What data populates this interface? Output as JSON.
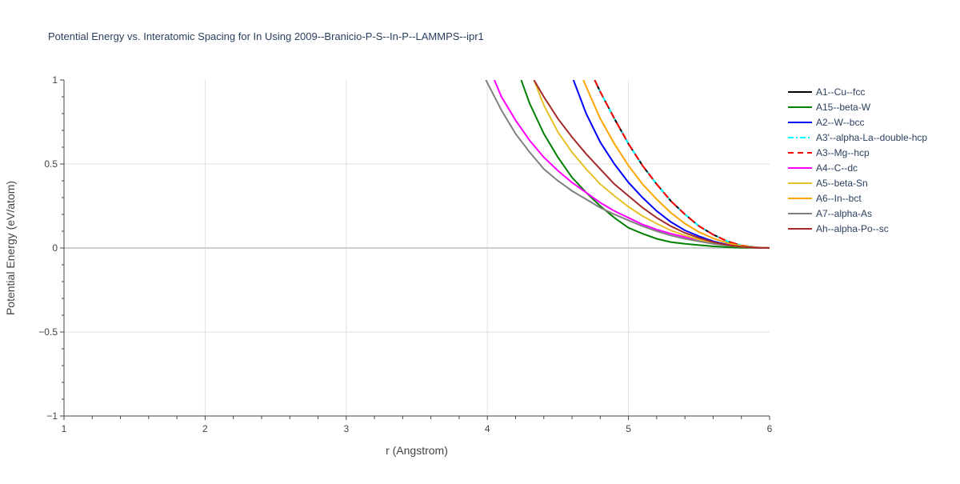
{
  "chart_data": {
    "type": "line",
    "title": "Potential Energy vs. Interatomic Spacing for In Using 2009--Branicio-P-S--In-P--LAMMPS--ipr1",
    "xlabel": "r (Angstrom)",
    "ylabel": "Potential Energy (eV/atom)",
    "xlim": [
      1,
      6
    ],
    "ylim": [
      -1,
      1
    ],
    "x_ticks": [
      "1",
      "2",
      "3",
      "4",
      "5",
      "6"
    ],
    "y_ticks": [
      "1",
      "0.5",
      "0",
      "−0.5",
      "−1"
    ],
    "grid": true,
    "legend_position": "right",
    "series": [
      {
        "name": "A1--Cu--fcc",
        "color": "#000000",
        "dash": "solid",
        "x": [
          4.76,
          4.8,
          4.9,
          5.0,
          5.1,
          5.2,
          5.3,
          5.4,
          5.5,
          5.6,
          5.7,
          5.8,
          5.9,
          6.0
        ],
        "y": [
          1.0,
          0.93,
          0.77,
          0.62,
          0.49,
          0.38,
          0.28,
          0.2,
          0.13,
          0.08,
          0.04,
          0.015,
          0.004,
          0.0
        ]
      },
      {
        "name": "A15--beta-W",
        "color": "#008000",
        "dash": "solid",
        "x": [
          4.24,
          4.3,
          4.4,
          4.5,
          4.6,
          4.7,
          4.8,
          4.9,
          5.0,
          5.1,
          5.2,
          5.3,
          5.4,
          5.5,
          5.6,
          5.7,
          5.8,
          5.9,
          6.0
        ],
        "y": [
          1.0,
          0.86,
          0.68,
          0.54,
          0.42,
          0.33,
          0.25,
          0.18,
          0.12,
          0.085,
          0.055,
          0.035,
          0.025,
          0.017,
          0.01,
          0.005,
          0.002,
          0.001,
          0.0
        ]
      },
      {
        "name": "A2--W--bcc",
        "color": "#0000ff",
        "dash": "solid",
        "x": [
          4.61,
          4.7,
          4.8,
          4.9,
          5.0,
          5.1,
          5.2,
          5.3,
          5.4,
          5.5,
          5.6,
          5.7,
          5.8,
          5.9,
          6.0
        ],
        "y": [
          1.0,
          0.8,
          0.63,
          0.5,
          0.39,
          0.3,
          0.22,
          0.155,
          0.105,
          0.07,
          0.04,
          0.02,
          0.008,
          0.002,
          0.0
        ]
      },
      {
        "name": "A3'--alpha-La--double-hcp",
        "color": "#00ffff",
        "dash": "dashdot",
        "x": [
          4.76,
          4.8,
          4.9,
          5.0,
          5.1,
          5.2,
          5.3,
          5.4,
          5.5,
          5.6,
          5.7,
          5.8,
          5.9,
          6.0
        ],
        "y": [
          1.0,
          0.93,
          0.77,
          0.62,
          0.49,
          0.38,
          0.28,
          0.2,
          0.13,
          0.08,
          0.04,
          0.015,
          0.004,
          0.0
        ]
      },
      {
        "name": "A3--Mg--hcp",
        "color": "#ff0000",
        "dash": "dash",
        "x": [
          4.76,
          4.8,
          4.9,
          5.0,
          5.1,
          5.2,
          5.3,
          5.4,
          5.5,
          5.6,
          5.7,
          5.8,
          5.9,
          6.0
        ],
        "y": [
          1.0,
          0.93,
          0.77,
          0.62,
          0.49,
          0.38,
          0.28,
          0.2,
          0.13,
          0.08,
          0.04,
          0.015,
          0.004,
          0.0
        ]
      },
      {
        "name": "A4--C--dc",
        "color": "#ff00ff",
        "dash": "solid",
        "x": [
          4.05,
          4.1,
          4.2,
          4.3,
          4.4,
          4.5,
          4.6,
          4.7,
          4.8,
          4.9,
          5.0,
          5.1,
          5.2,
          5.3,
          5.4,
          5.5,
          5.6,
          5.7,
          5.8,
          5.9,
          6.0
        ],
        "y": [
          1.0,
          0.9,
          0.76,
          0.64,
          0.54,
          0.46,
          0.39,
          0.33,
          0.27,
          0.22,
          0.18,
          0.14,
          0.11,
          0.085,
          0.065,
          0.045,
          0.03,
          0.018,
          0.008,
          0.002,
          0.0
        ]
      },
      {
        "name": "A5--beta-Sn",
        "color": "#e6c027",
        "dash": "solid",
        "x": [
          4.33,
          4.4,
          4.5,
          4.6,
          4.7,
          4.8,
          4.9,
          5.0,
          5.1,
          5.2,
          5.3,
          5.4,
          5.5,
          5.6,
          5.7,
          5.8,
          5.9,
          6.0
        ],
        "y": [
          1.0,
          0.85,
          0.69,
          0.57,
          0.47,
          0.38,
          0.31,
          0.245,
          0.19,
          0.145,
          0.105,
          0.075,
          0.05,
          0.03,
          0.016,
          0.006,
          0.002,
          0.0
        ]
      },
      {
        "name": "A6--In--bct",
        "color": "#ffa500",
        "dash": "solid",
        "x": [
          4.68,
          4.7,
          4.8,
          4.9,
          5.0,
          5.1,
          5.2,
          5.3,
          5.4,
          5.5,
          5.6,
          5.7,
          5.8,
          5.9,
          6.0
        ],
        "y": [
          1.0,
          0.96,
          0.77,
          0.62,
          0.49,
          0.38,
          0.29,
          0.21,
          0.145,
          0.095,
          0.058,
          0.03,
          0.012,
          0.003,
          0.0
        ]
      },
      {
        "name": "A7--alpha-As",
        "color": "#808080",
        "dash": "solid",
        "x": [
          3.99,
          4.1,
          4.2,
          4.3,
          4.4,
          4.5,
          4.6,
          4.7,
          4.8,
          4.9,
          5.0,
          5.1,
          5.2,
          5.3,
          5.4,
          5.5,
          5.6,
          5.7,
          5.8,
          5.9,
          6.0
        ],
        "y": [
          1.0,
          0.82,
          0.68,
          0.57,
          0.47,
          0.4,
          0.34,
          0.29,
          0.24,
          0.2,
          0.165,
          0.13,
          0.1,
          0.075,
          0.055,
          0.04,
          0.025,
          0.015,
          0.007,
          0.002,
          0.0
        ]
      },
      {
        "name": "Ah--alpha-Po--sc",
        "color": "#a52a2a",
        "dash": "solid",
        "x": [
          4.33,
          4.4,
          4.5,
          4.6,
          4.7,
          4.8,
          4.9,
          5.0,
          5.1,
          5.2,
          5.3,
          5.4,
          5.5,
          5.6,
          5.7,
          5.8,
          5.9,
          6.0
        ],
        "y": [
          1.0,
          0.9,
          0.77,
          0.66,
          0.56,
          0.47,
          0.38,
          0.31,
          0.24,
          0.18,
          0.13,
          0.09,
          0.06,
          0.035,
          0.018,
          0.007,
          0.002,
          0.0
        ]
      }
    ]
  }
}
